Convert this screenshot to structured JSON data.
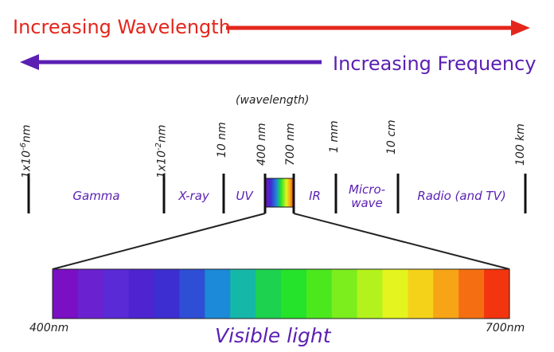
{
  "header": {
    "increasing_wavelength": "Increasing Wavelength",
    "increasing_frequency": "Increasing Frequency",
    "wavelength_caption": "(wavelength)"
  },
  "scale": {
    "ticks": {
      "gamma_start": {
        "base": "1x10",
        "exp": "-6",
        "unit": "nm"
      },
      "xray_start": {
        "base": "1x10",
        "exp": "-2",
        "unit": "nm"
      },
      "uv_start": "10 nm",
      "visible_start": "400 nm",
      "visible_end": "700 nm",
      "ir_end": "1 mm",
      "microwave_end": "10 cm",
      "radio_end": "100 km"
    },
    "bands": {
      "gamma": "Gamma",
      "xray": "X-ray",
      "uv": "UV",
      "ir": "IR",
      "microwave_line1": "Micro-",
      "microwave_line2": "wave",
      "radio": "Radio (and TV)"
    }
  },
  "visible_spectrum": {
    "title": "Visible light",
    "start_label": "400nm",
    "end_label": "700nm",
    "colors": [
      "#7a0fc4",
      "#6a22d0",
      "#5a2ad6",
      "#4d24cf",
      "#3c2ed1",
      "#2f4ed6",
      "#1c8ad8",
      "#15b8a8",
      "#1dd24e",
      "#25e22a",
      "#4ce81e",
      "#7cee1e",
      "#b4f21e",
      "#e4f41e",
      "#f4d21a",
      "#f7a416",
      "#f56f12",
      "#f2350e"
    ]
  },
  "colors": {
    "red_arrow": "#e4261c",
    "purple_arrow": "#5a1fb3"
  }
}
